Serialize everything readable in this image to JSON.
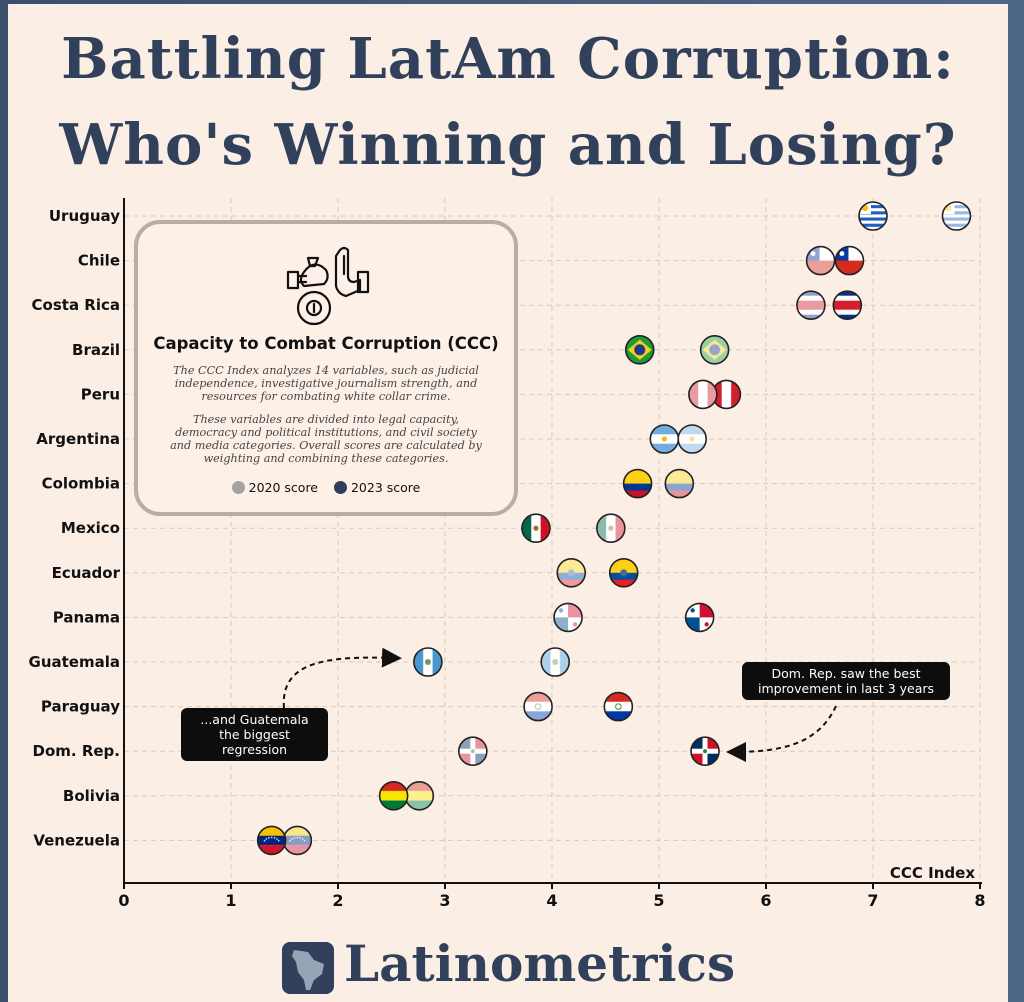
{
  "title": {
    "line1": "Battling LatAm Corruption:",
    "line2": "Who's Winning and Losing?"
  },
  "legend_box": {
    "icon": "fist-and-raised-hand-icon",
    "title": "Capacity to Combat Corruption (CCC)",
    "para1": "The CCC Index analyzes 14 variables, such as judicial independence, investigative journalism strength, and resources for combating white collar crime.",
    "para2": "These variables are divided into legal capacity, democracy and political institutions, and civil society and media categories. Overall scores are calculated by weighting and combining these categories.",
    "item_2020": "2020 score",
    "item_2023": "2023 score",
    "color_2020": "#a3a3a3",
    "color_2023": "#2f3f5a"
  },
  "callouts": {
    "dom_rep": "Dom. Rep. saw the best improvement in last 3 years",
    "guatemala": "...and Guatemala the biggest regression"
  },
  "brand": "Latinometrics",
  "chart_data": {
    "type": "scatter",
    "xlabel": "CCC Index",
    "xlim": [
      0,
      8
    ],
    "xticks": [
      0,
      1,
      2,
      3,
      4,
      5,
      6,
      7,
      8
    ],
    "grid": true,
    "series": [
      {
        "name": "2020 score",
        "values": [
          7.78,
          6.51,
          6.42,
          5.52,
          5.41,
          5.31,
          5.19,
          4.55,
          4.18,
          4.15,
          4.03,
          3.87,
          3.26,
          2.76,
          1.62
        ]
      },
      {
        "name": "2023 score",
        "values": [
          7.0,
          6.78,
          6.76,
          4.82,
          5.63,
          5.05,
          4.8,
          3.85,
          4.67,
          5.38,
          2.84,
          4.62,
          5.43,
          2.52,
          1.38
        ]
      }
    ],
    "categories": [
      "Uruguay",
      "Chile",
      "Costa Rica",
      "Brazil",
      "Peru",
      "Argentina",
      "Colombia",
      "Mexico",
      "Ecuador",
      "Panama",
      "Guatemala",
      "Paraguay",
      "Dom. Rep.",
      "Bolivia",
      "Venezuela"
    ],
    "flags": [
      "uruguay-flag",
      "chile-flag",
      "costa-rica-flag",
      "brazil-flag",
      "peru-flag",
      "argentina-flag",
      "colombia-flag",
      "mexico-flag",
      "ecuador-flag",
      "panama-flag",
      "guatemala-flag",
      "paraguay-flag",
      "dominican-republic-flag",
      "bolivia-flag",
      "venezuela-flag"
    ]
  }
}
